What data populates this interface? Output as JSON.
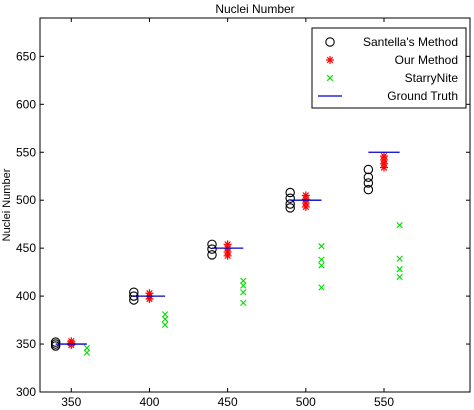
{
  "chart_data": {
    "type": "scatter",
    "title": "Nuclei Number",
    "xlabel": "",
    "ylabel": "Nuclei Number",
    "xlim": [
      330,
      605
    ],
    "ylim": [
      300,
      690
    ],
    "xticks": [
      350,
      400,
      450,
      500,
      550
    ],
    "yticks": [
      300,
      350,
      400,
      450,
      500,
      550,
      600,
      650
    ],
    "grid": false,
    "legend_position": "top-right",
    "series": [
      {
        "name": "Santella's Method",
        "marker": "circle-open",
        "color": "#000000",
        "points": [
          {
            "x": 340,
            "y": 348
          },
          {
            "x": 340,
            "y": 350
          },
          {
            "x": 340,
            "y": 352
          },
          {
            "x": 390,
            "y": 396
          },
          {
            "x": 390,
            "y": 400
          },
          {
            "x": 390,
            "y": 404
          },
          {
            "x": 440,
            "y": 443
          },
          {
            "x": 440,
            "y": 449
          },
          {
            "x": 440,
            "y": 454
          },
          {
            "x": 490,
            "y": 492
          },
          {
            "x": 490,
            "y": 496
          },
          {
            "x": 490,
            "y": 502
          },
          {
            "x": 490,
            "y": 508
          },
          {
            "x": 540,
            "y": 511
          },
          {
            "x": 540,
            "y": 518
          },
          {
            "x": 540,
            "y": 524
          },
          {
            "x": 540,
            "y": 532
          }
        ]
      },
      {
        "name": "Our Method",
        "marker": "star",
        "color": "#ff0000",
        "points": [
          {
            "x": 350,
            "y": 349
          },
          {
            "x": 350,
            "y": 351
          },
          {
            "x": 350,
            "y": 353
          },
          {
            "x": 400,
            "y": 397
          },
          {
            "x": 400,
            "y": 400
          },
          {
            "x": 400,
            "y": 403
          },
          {
            "x": 450,
            "y": 442
          },
          {
            "x": 450,
            "y": 446
          },
          {
            "x": 450,
            "y": 450
          },
          {
            "x": 450,
            "y": 454
          },
          {
            "x": 500,
            "y": 493
          },
          {
            "x": 500,
            "y": 497
          },
          {
            "x": 500,
            "y": 501
          },
          {
            "x": 500,
            "y": 505
          },
          {
            "x": 550,
            "y": 534
          },
          {
            "x": 550,
            "y": 538
          },
          {
            "x": 550,
            "y": 542
          },
          {
            "x": 550,
            "y": 546
          }
        ]
      },
      {
        "name": "StarryNite",
        "marker": "x",
        "color": "#00dd00",
        "points": [
          {
            "x": 360,
            "y": 341
          },
          {
            "x": 360,
            "y": 346
          },
          {
            "x": 410,
            "y": 370
          },
          {
            "x": 410,
            "y": 376
          },
          {
            "x": 410,
            "y": 381
          },
          {
            "x": 460,
            "y": 393
          },
          {
            "x": 460,
            "y": 404
          },
          {
            "x": 460,
            "y": 411
          },
          {
            "x": 460,
            "y": 416
          },
          {
            "x": 510,
            "y": 409
          },
          {
            "x": 510,
            "y": 432
          },
          {
            "x": 510,
            "y": 438
          },
          {
            "x": 510,
            "y": 452
          },
          {
            "x": 560,
            "y": 420
          },
          {
            "x": 560,
            "y": 428
          },
          {
            "x": 560,
            "y": 439
          },
          {
            "x": 560,
            "y": 474
          }
        ]
      },
      {
        "name": "Ground Truth",
        "marker": "hline",
        "color": "#0000cc",
        "segments": [
          {
            "x1": 340,
            "x2": 360,
            "y": 350
          },
          {
            "x1": 390,
            "x2": 410,
            "y": 400
          },
          {
            "x1": 440,
            "x2": 460,
            "y": 450
          },
          {
            "x1": 490,
            "x2": 510,
            "y": 500
          },
          {
            "x1": 540,
            "x2": 560,
            "y": 550
          }
        ]
      }
    ]
  }
}
